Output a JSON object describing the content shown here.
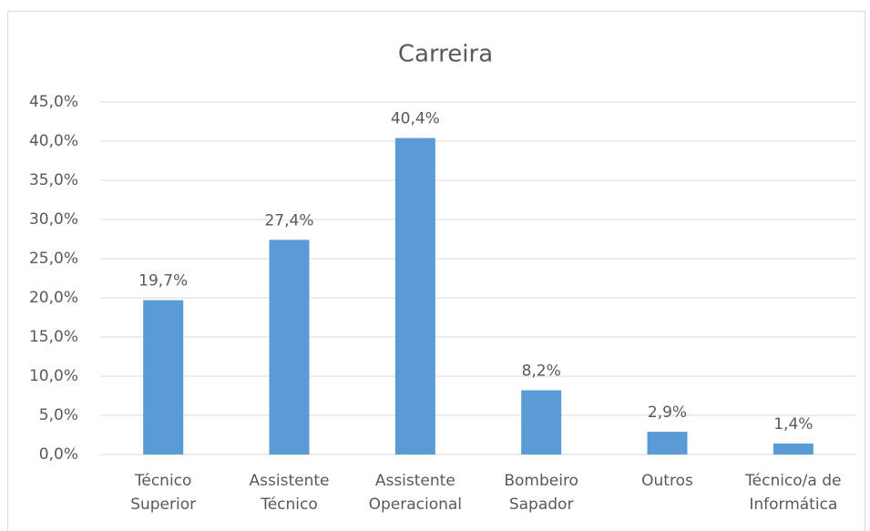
{
  "chart_data": {
    "type": "bar",
    "title": "Carreira",
    "categories": [
      "Técnico Superior",
      "Assistente Técnico",
      "Assistente Operacional",
      "Bombeiro Sapador",
      "Outros",
      "Técnico/a de Informática"
    ],
    "values": [
      19.7,
      27.4,
      40.4,
      8.2,
      2.9,
      1.4
    ],
    "value_labels": [
      "19,7%",
      "27,4%",
      "40,4%",
      "8,2%",
      "2,9%",
      "1,4%"
    ],
    "color": "#5b9bd5",
    "ylim": [
      0,
      45
    ],
    "yticks": [
      {
        "value": 0,
        "label": "0,0%"
      },
      {
        "value": 5,
        "label": "5,0%"
      },
      {
        "value": 10,
        "label": "10,0%"
      },
      {
        "value": 15,
        "label": "15,0%"
      },
      {
        "value": 20,
        "label": "20,0%"
      },
      {
        "value": 25,
        "label": "25,0%"
      },
      {
        "value": 30,
        "label": "30,0%"
      },
      {
        "value": 35,
        "label": "35,0%"
      },
      {
        "value": 40,
        "label": "40,0%"
      },
      {
        "value": 45,
        "label": "45,0%"
      }
    ],
    "grid": true
  }
}
